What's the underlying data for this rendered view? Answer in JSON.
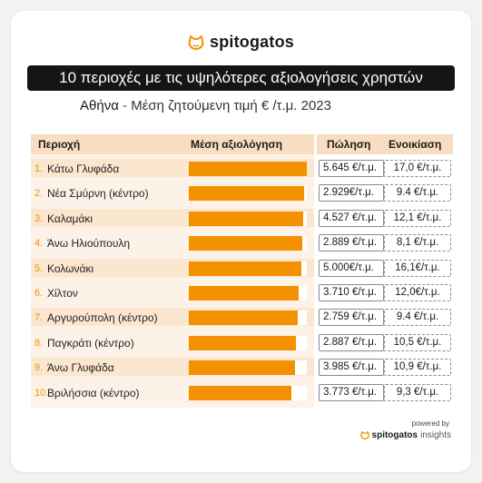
{
  "brand": {
    "name": "spitogatos",
    "powered_by": "powered by",
    "footer_name": "spitogatos",
    "footer_suffix": "insights"
  },
  "colors": {
    "accent": "#f39100",
    "row_bg": "#fdf2e7",
    "header_bg": "#f9ddc0",
    "title_bg": "#151515"
  },
  "chart_data": {
    "type": "bar",
    "title": "10 περιοχές με τις υψηλότερες αξιολογήσεις χρηστών",
    "subtitle_city": "Αθήνα",
    "subtitle_sep": "-",
    "subtitle_rest": "Μέση ζητούμενη τιμή € /τ.μ. 2023",
    "columns": {
      "area": "Περιοχή",
      "rating": "Μέση αξιολόγηση",
      "sale": "Πώληση",
      "rent": "Ενοικίαση"
    },
    "rows": [
      {
        "rank": "1.",
        "area": "Κάτω Γλυφάδα",
        "rating": 1.0,
        "sale": "5.645 €/τ.μ.",
        "rent": "17,0 €/τ.μ."
      },
      {
        "rank": "2.",
        "area": "Νέα Σμύρνη (κέντρο)",
        "rating": 0.98,
        "sale": "2.929€/τ.μ.",
        "rent": "9.4 €/τ.μ."
      },
      {
        "rank": "3.",
        "area": "Καλαμάκι",
        "rating": 0.97,
        "sale": "4.527 €/τ.μ.",
        "rent": "12,1 €/τ.μ."
      },
      {
        "rank": "4.",
        "area": "Άνω Ηλιούπουλη",
        "rating": 0.96,
        "sale": "2.889 €/τ.μ.",
        "rent": "8,1 €/τ.μ."
      },
      {
        "rank": "5.",
        "area": "Κολωνάκι",
        "rating": 0.95,
        "sale": "5.000€/τ.μ.",
        "rent": "16,1€/τ.μ."
      },
      {
        "rank": "6.",
        "area": "Χίλτον",
        "rating": 0.93,
        "sale": "3.710 €/τ.μ.",
        "rent": "12,0€/τ.μ."
      },
      {
        "rank": "7.",
        "area": "Αργυρούπολη (κέντρο)",
        "rating": 0.92,
        "sale": "2.759 €/τ.μ.",
        "rent": "9.4 €/τ.μ."
      },
      {
        "rank": "8.",
        "area": "Παγκράτι (κέντρο)",
        "rating": 0.91,
        "sale": "2.887 €/τ.μ.",
        "rent": "10,5 €/τ.μ."
      },
      {
        "rank": "9.",
        "area": "Άνω Γλυφάδα",
        "rating": 0.9,
        "sale": "3.985 €/τ.μ.",
        "rent": "10,9 €/τ.μ."
      },
      {
        "rank": "10.",
        "area": "Βριλήσσια (κέντρο)",
        "rating": 0.87,
        "sale": "3.773 €/τ.μ.",
        "rent": "9,3 €/τ.μ."
      }
    ]
  }
}
